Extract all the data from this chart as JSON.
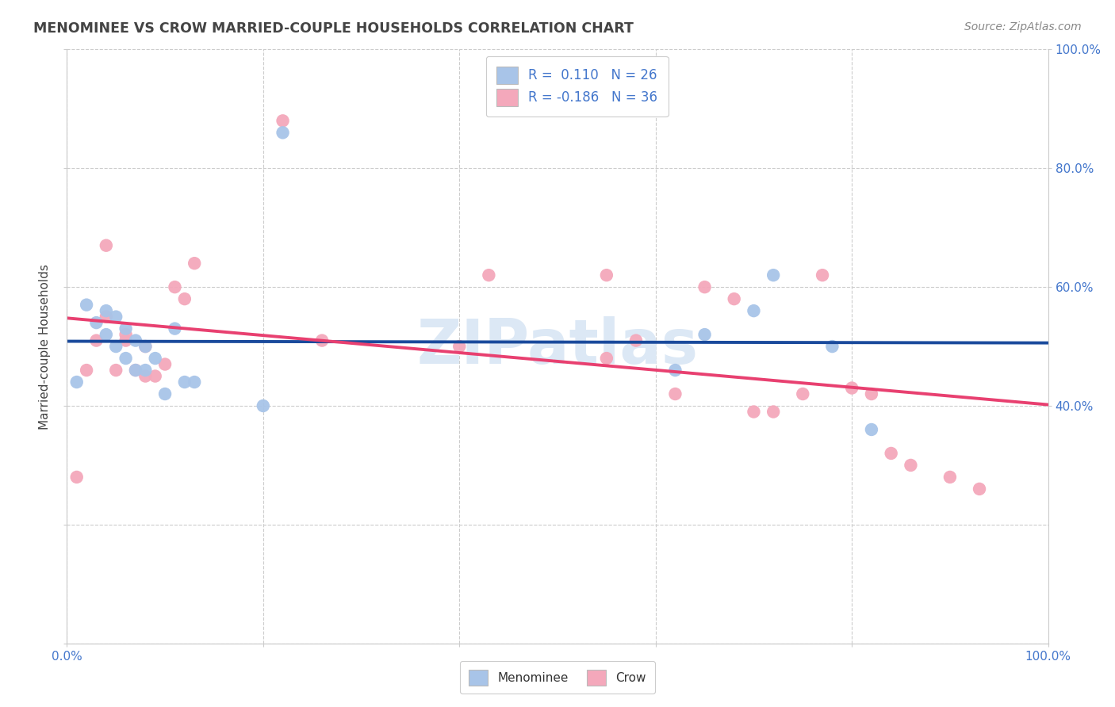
{
  "title": "MENOMINEE VS CROW MARRIED-COUPLE HOUSEHOLDS CORRELATION CHART",
  "source": "Source: ZipAtlas.com",
  "ylabel": "Married-couple Households",
  "xlim": [
    0,
    100
  ],
  "ylim": [
    0,
    100
  ],
  "legend_label1": "Menominee",
  "legend_label2": "Crow",
  "r1": 0.11,
  "n1": 26,
  "r2": -0.186,
  "n2": 36,
  "menominee_color": "#a8c4e8",
  "crow_color": "#f4a8bb",
  "menominee_line_color": "#1a4a9c",
  "crow_line_color": "#e84070",
  "background_color": "#ffffff",
  "grid_color": "#cccccc",
  "title_color": "#444444",
  "axis_label_color": "#4477cc",
  "watermark_color": "#dce8f5",
  "menominee_x": [
    1,
    2,
    3,
    4,
    4,
    5,
    5,
    6,
    6,
    7,
    7,
    8,
    8,
    9,
    10,
    11,
    12,
    13,
    20,
    22,
    62,
    65,
    70,
    72,
    78,
    82
  ],
  "menominee_y": [
    44,
    57,
    54,
    52,
    56,
    50,
    55,
    48,
    53,
    46,
    51,
    46,
    50,
    48,
    42,
    53,
    44,
    44,
    40,
    86,
    46,
    52,
    56,
    62,
    50,
    36
  ],
  "crow_x": [
    1,
    2,
    3,
    4,
    4,
    5,
    6,
    6,
    7,
    8,
    8,
    9,
    10,
    11,
    12,
    13,
    22,
    26,
    40,
    43,
    55,
    55,
    58,
    62,
    65,
    68,
    70,
    72,
    75,
    77,
    80,
    82,
    84,
    86,
    90,
    93
  ],
  "crow_y": [
    28,
    46,
    51,
    55,
    67,
    46,
    51,
    52,
    46,
    45,
    50,
    45,
    47,
    60,
    58,
    64,
    88,
    51,
    50,
    62,
    48,
    62,
    51,
    42,
    60,
    58,
    39,
    39,
    42,
    62,
    43,
    42,
    32,
    30,
    28,
    26
  ]
}
